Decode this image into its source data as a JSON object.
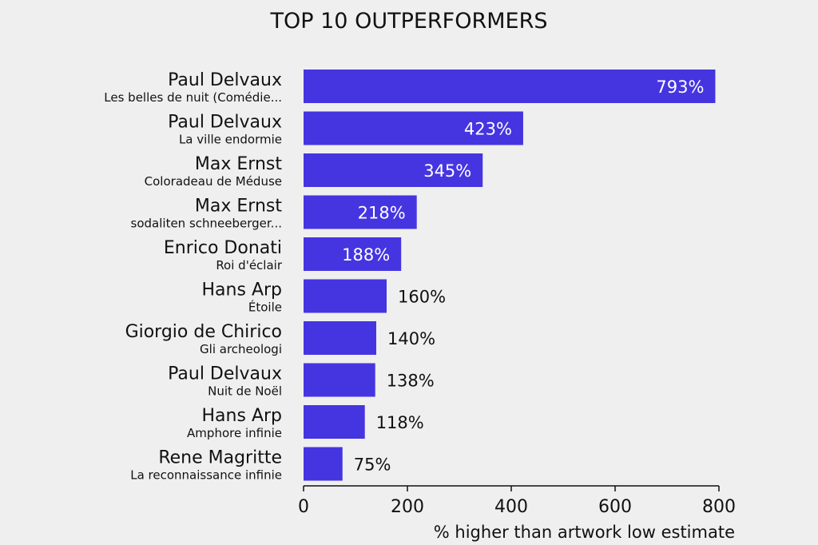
{
  "chart_data": {
    "type": "bar",
    "orientation": "horizontal",
    "title": "TOP 10 OUTPERFORMERS",
    "xlabel": "% higher than artwork low estimate",
    "xlim": [
      0,
      800
    ],
    "xticks": [
      "0",
      "200",
      "400",
      "600",
      "800"
    ],
    "grid": false,
    "colors": {
      "bar": "#4535e0",
      "label_inside": "#ffffff",
      "label_outside": "#111111"
    },
    "categories": [
      {
        "artist": "Paul Delvaux",
        "artwork": "Les belles de nuit (Comédie...",
        "value": 793,
        "value_label": "793%"
      },
      {
        "artist": "Paul Delvaux",
        "artwork": "La ville endormie",
        "value": 423,
        "value_label": "423%"
      },
      {
        "artist": "Max Ernst",
        "artwork": "Coloradeau de Méduse",
        "value": 345,
        "value_label": "345%"
      },
      {
        "artist": "Max Ernst",
        "artwork": "sodaliten schneeberger...",
        "value": 218,
        "value_label": "218%"
      },
      {
        "artist": "Enrico Donati",
        "artwork": "Roi d'éclair",
        "value": 188,
        "value_label": "188%"
      },
      {
        "artist": "Hans Arp",
        "artwork": "Étoile",
        "value": 160,
        "value_label": "160%"
      },
      {
        "artist": "Giorgio de Chirico",
        "artwork": "Gli archeologi",
        "value": 140,
        "value_label": "140%"
      },
      {
        "artist": "Paul Delvaux",
        "artwork": "Nuit de Noël",
        "value": 138,
        "value_label": "138%"
      },
      {
        "artist": "Hans Arp",
        "artwork": "Amphore infinie",
        "value": 118,
        "value_label": "118%"
      },
      {
        "artist": "Rene Magritte",
        "artwork": "La reconnaissance infinie",
        "value": 75,
        "value_label": "75%"
      }
    ]
  }
}
